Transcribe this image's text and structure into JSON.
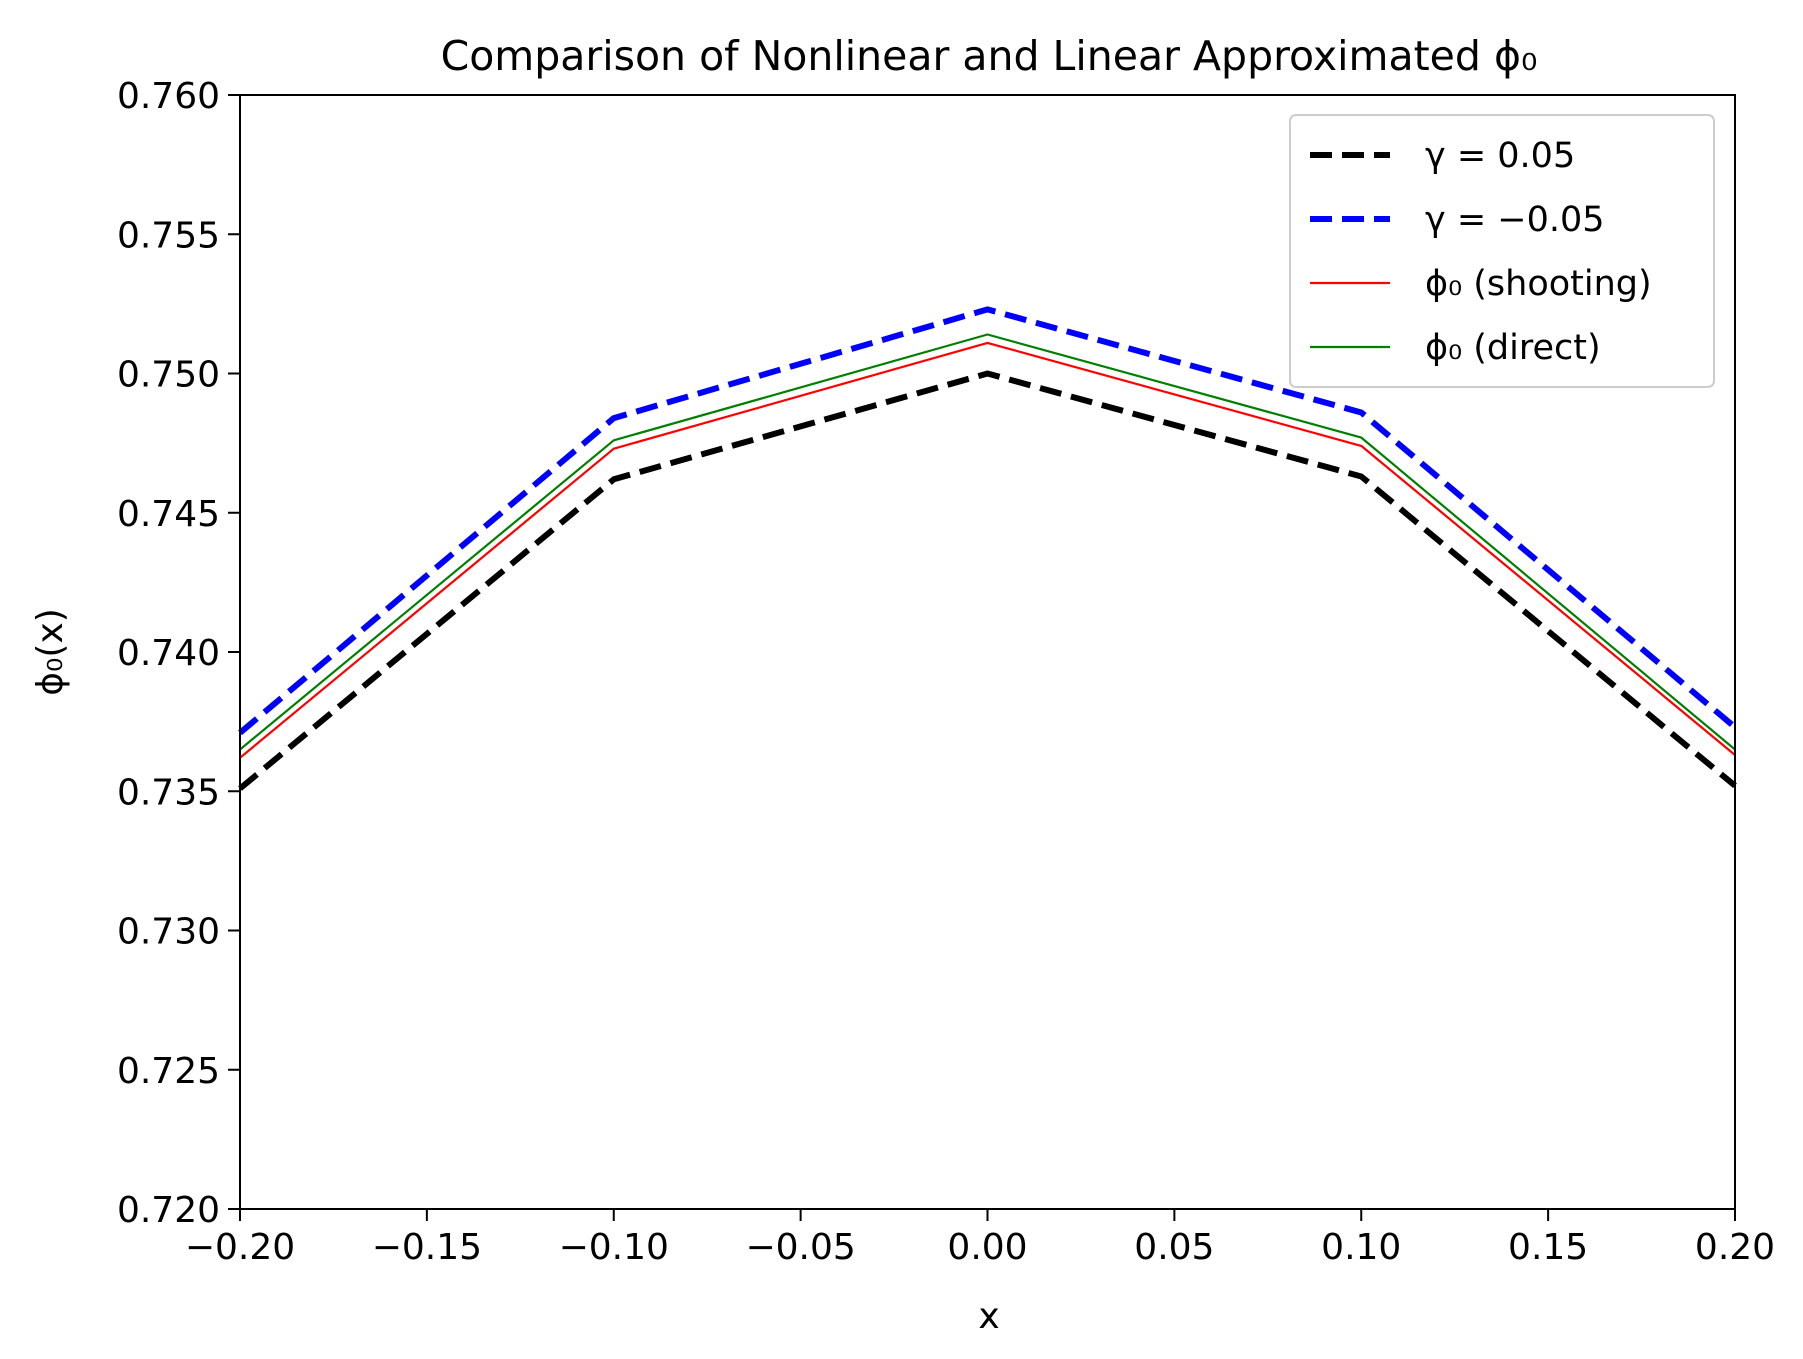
{
  "chart_data": {
    "type": "line",
    "title": "Comparison of Nonlinear and Linear Approximated ϕ₀",
    "xlabel": "x",
    "ylabel": "ϕ₀(x)",
    "xlim": [
      -0.2,
      0.2
    ],
    "ylim": [
      0.72,
      0.76
    ],
    "x_ticks": [
      -0.2,
      -0.15,
      -0.1,
      -0.05,
      0.0,
      0.05,
      0.1,
      0.15,
      0.2
    ],
    "x_tick_labels": [
      "−0.20",
      "−0.15",
      "−0.10",
      "−0.05",
      "0.00",
      "0.05",
      "0.10",
      "0.15",
      "0.20"
    ],
    "y_ticks": [
      0.72,
      0.725,
      0.73,
      0.735,
      0.74,
      0.745,
      0.75,
      0.755,
      0.76
    ],
    "y_tick_labels": [
      "0.720",
      "0.725",
      "0.730",
      "0.735",
      "0.740",
      "0.745",
      "0.750",
      "0.755",
      "0.760"
    ],
    "grid": false,
    "legend_position": "top-right",
    "x": [
      -0.2,
      -0.1,
      0.0,
      0.1,
      0.2
    ],
    "series": [
      {
        "name": "γ = 0.05",
        "values": [
          0.7351,
          0.7462,
          0.75,
          0.7463,
          0.7352
        ],
        "color": "#000000",
        "style": "dashed"
      },
      {
        "name": "γ = −0.05",
        "values": [
          0.7371,
          0.7484,
          0.7523,
          0.7486,
          0.7373
        ],
        "color": "#0000ff",
        "style": "dashed"
      },
      {
        "name": "ϕ₀ (shooting)",
        "values": [
          0.7362,
          0.7473,
          0.7511,
          0.7474,
          0.7363
        ],
        "color": "#ff0000",
        "style": "solid"
      },
      {
        "name": "ϕ₀ (direct)",
        "values": [
          0.7365,
          0.7476,
          0.7514,
          0.7477,
          0.7365
        ],
        "color": "#008000",
        "style": "solid"
      }
    ]
  }
}
